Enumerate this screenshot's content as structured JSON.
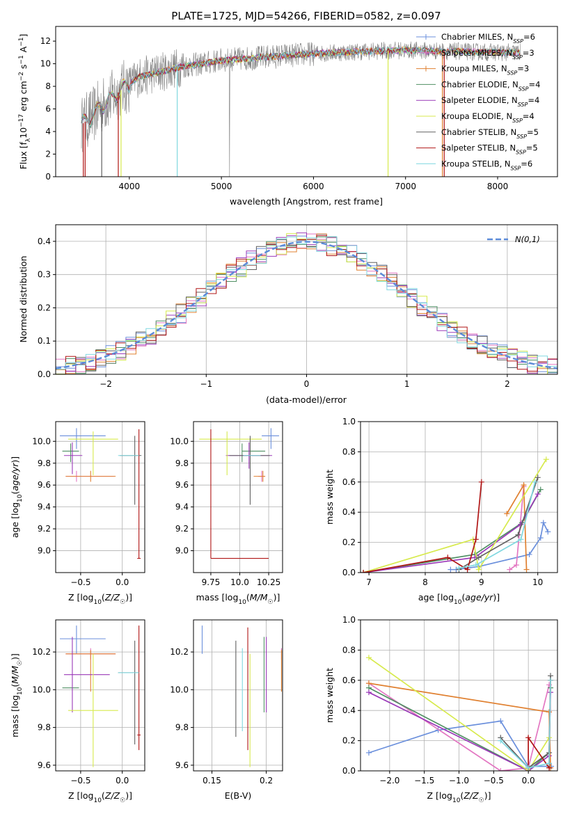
{
  "figure_title": "PLATE=1725, MJD=54266, FIBERID=0582, z=0.097",
  "colors": {
    "Chabrier MILES": "#6a8fdc",
    "Salpeter MILES": "#e377c2",
    "Kroupa MILES": "#e08030",
    "Chabrier ELODIE": "#4f8f63",
    "Salpeter ELODIE": "#9a38b8",
    "Kroupa ELODIE": "#d7ea4d",
    "Chabrier STELIB": "#606060",
    "Salpeter STELIB": "#b01515",
    "Kroupa STELIB": "#80d8e0",
    "spectrum": "#808080",
    "normal": "#5b8ad8"
  },
  "legend_main": [
    {
      "name": "Chabrier MILES",
      "nssp": "6"
    },
    {
      "name": "Salpeter MILES",
      "nssp": "3"
    },
    {
      "name": "Kroupa MILES",
      "nssp": "3"
    },
    {
      "name": "Chabrier ELODIE",
      "nssp": "4"
    },
    {
      "name": "Salpeter ELODIE",
      "nssp": "4"
    },
    {
      "name": "Kroupa ELODIE",
      "nssp": "4"
    },
    {
      "name": "Chabrier STELIB",
      "nssp": "5"
    },
    {
      "name": "Salpeter STELIB",
      "nssp": "5"
    },
    {
      "name": "Kroupa STELIB",
      "nssp": "6"
    }
  ],
  "chart_data": [
    {
      "id": "spectrum",
      "type": "line",
      "xlabel": "wavelength [Angstrom, rest frame]",
      "ylabel": "Flux [f_λ 10^-17 erg cm^-2 s^-1 A^-1]",
      "xlim": [
        3200,
        8650
      ],
      "ylim": [
        0,
        13.3
      ],
      "xticks": [
        4000,
        5000,
        6000,
        7000,
        8000
      ],
      "yticks": [
        0,
        2,
        4,
        6,
        8,
        10,
        12
      ],
      "continuum_knots": [
        [
          3480,
          4.6
        ],
        [
          3600,
          5.4
        ],
        [
          3700,
          6.3
        ],
        [
          3800,
          6.9
        ],
        [
          3900,
          7.6
        ],
        [
          4000,
          8.2
        ],
        [
          4100,
          8.8
        ],
        [
          4200,
          9.0
        ],
        [
          4400,
          9.4
        ],
        [
          4600,
          9.8
        ],
        [
          4800,
          10.0
        ],
        [
          5000,
          10.3
        ],
        [
          5200,
          10.4
        ],
        [
          5500,
          10.6
        ],
        [
          6000,
          10.9
        ],
        [
          6300,
          11.0
        ],
        [
          6600,
          11.1
        ],
        [
          7000,
          11.2
        ],
        [
          7500,
          11.1
        ],
        [
          8000,
          11.0
        ],
        [
          8250,
          11.0
        ]
      ]
    },
    {
      "id": "residuals",
      "type": "histogram",
      "xlabel": "(data-model)/error",
      "ylabel": "Normed distribution",
      "xlim": [
        -2.5,
        2.5
      ],
      "ylim": [
        0,
        0.45
      ],
      "xticks": [
        -2,
        -1,
        0,
        1,
        2
      ],
      "yticks": [
        0.0,
        0.1,
        0.2,
        0.3,
        0.4
      ],
      "bins": 50,
      "legend_label": "N(0,1)"
    },
    {
      "id": "age-vs-Z",
      "type": "scatter",
      "xlabel": "Z [log10(Z/Z☉)]",
      "ylabel": "age  [log10(age/yr)]",
      "xlim": [
        -0.8,
        0.27
      ],
      "ylim": [
        8.8,
        10.18
      ],
      "xticks": [
        -0.5,
        0.0
      ],
      "yticks": [
        9.0,
        9.2,
        9.4,
        9.6,
        9.8,
        10.0
      ],
      "points": [
        {
          "model": "Chabrier MILES",
          "x": -0.55,
          "y": 10.05,
          "xerr": [
            0.2,
            0.35
          ],
          "yerr": [
            0.12,
            0.07
          ]
        },
        {
          "model": "Salpeter MILES",
          "x": -0.55,
          "y": 9.68,
          "xerr": [
            0.13,
            0.45
          ],
          "yerr": [
            0.05,
            0.05
          ]
        },
        {
          "model": "Kroupa MILES",
          "x": -0.38,
          "y": 9.68,
          "xerr": [
            0.3,
            0.3
          ],
          "yerr": [
            0.05,
            0.05
          ]
        },
        {
          "model": "Chabrier ELODIE",
          "x": -0.62,
          "y": 9.91,
          "xerr": [
            0.1,
            0.1
          ],
          "yerr": [
            0.1,
            0.07
          ]
        },
        {
          "model": "Salpeter ELODIE",
          "x": -0.6,
          "y": 9.87,
          "xerr": [
            0.1,
            0.12
          ],
          "yerr": [
            0.17,
            0.12
          ]
        },
        {
          "model": "Kroupa ELODIE",
          "x": -0.35,
          "y": 10.02,
          "xerr": [
            0.3,
            0.3
          ],
          "yerr": [
            0.33,
            0.07
          ]
        },
        {
          "model": "Chabrier STELIB",
          "x": 0.15,
          "y": 9.87,
          "xerr": [
            0.18,
            0.08
          ],
          "yerr": [
            0.45,
            0.18
          ]
        },
        {
          "model": "Salpeter STELIB",
          "x": 0.2,
          "y": 8.93,
          "xerr": [
            0.02,
            0.02
          ],
          "yerr": [
            0.0,
            1.18
          ]
        },
        {
          "model": "Kroupa STELIB",
          "x": 0.15,
          "y": 9.87,
          "xerr": [
            0.2,
            0.05
          ],
          "yerr": [
            0.0,
            0.0
          ]
        }
      ]
    },
    {
      "id": "age-vs-mass",
      "type": "scatter",
      "xlabel": "mass [log10(M/M☉)]",
      "ylabel": "",
      "xlim": [
        9.6,
        10.37
      ],
      "ylim": [
        8.8,
        10.18
      ],
      "xticks": [
        9.75,
        10.0,
        10.25
      ],
      "yticks": [
        9.0,
        9.2,
        9.4,
        9.6,
        9.8,
        10.0
      ],
      "points": [
        {
          "model": "Chabrier MILES",
          "x": 10.27,
          "y": 10.05,
          "xerr": [
            0.08,
            0.07
          ],
          "yerr": [
            0.12,
            0.07
          ]
        },
        {
          "model": "Salpeter MILES",
          "x": 10.19,
          "y": 9.68,
          "xerr": [
            0.03,
            0.03
          ],
          "yerr": [
            0.05,
            0.05
          ]
        },
        {
          "model": "Kroupa MILES",
          "x": 10.2,
          "y": 9.68,
          "xerr": [
            0.08,
            0.02
          ],
          "yerr": [
            0.05,
            0.05
          ]
        },
        {
          "model": "Chabrier ELODIE",
          "x": 10.02,
          "y": 9.91,
          "xerr": [
            0.0,
            0.2
          ],
          "yerr": [
            0.1,
            0.07
          ]
        },
        {
          "model": "Salpeter ELODIE",
          "x": 10.08,
          "y": 9.87,
          "xerr": [
            0.2,
            0.2
          ],
          "yerr": [
            0.12,
            0.12
          ]
        },
        {
          "model": "Kroupa ELODIE",
          "x": 9.89,
          "y": 10.02,
          "xerr": [
            0.24,
            0.3
          ],
          "yerr": [
            0.33,
            0.07
          ]
        },
        {
          "model": "Chabrier STELIB",
          "x": 10.09,
          "y": 9.87,
          "xerr": [
            0.18,
            0.17
          ],
          "yerr": [
            0.45,
            0.18
          ]
        },
        {
          "model": "Salpeter STELIB",
          "x": 9.75,
          "y": 8.93,
          "xerr": [
            0.0,
            0.5
          ],
          "yerr": [
            0.0,
            1.18
          ]
        },
        {
          "model": "Kroupa STELIB",
          "x": 10.08,
          "y": 9.87,
          "xerr": [
            0.05,
            0.1
          ],
          "yerr": [
            0.0,
            0.0
          ]
        }
      ]
    },
    {
      "id": "massweight-vs-age",
      "type": "line",
      "xlabel": "age  [log10(age/yr)]",
      "ylabel": "mass weight",
      "xlim": [
        6.85,
        10.35
      ],
      "ylim": [
        0,
        1.0
      ],
      "xticks": [
        7,
        8,
        9,
        10
      ],
      "yticks": [
        0.0,
        0.2,
        0.4,
        0.6,
        0.8,
        1.0
      ],
      "series": [
        {
          "model": "Chabrier MILES",
          "x": [
            8.45,
            8.55,
            8.95,
            9.85,
            10.05,
            10.1,
            10.18
          ],
          "y": [
            0.02,
            0.02,
            0.04,
            0.12,
            0.23,
            0.33,
            0.27
          ]
        },
        {
          "model": "Salpeter MILES",
          "x": [
            9.5,
            9.62,
            9.75
          ],
          "y": [
            0.02,
            0.05,
            0.57
          ]
        },
        {
          "model": "Kroupa MILES",
          "x": [
            9.45,
            9.75,
            9.8
          ],
          "y": [
            0.39,
            0.58,
            0.02
          ]
        },
        {
          "model": "Chabrier ELODIE",
          "x": [
            6.9,
            8.88,
            9.72,
            10.05
          ],
          "y": [
            0.0,
            0.12,
            0.33,
            0.55
          ]
        },
        {
          "model": "Salpeter ELODIE",
          "x": [
            6.9,
            8.88,
            9.7,
            10.0
          ],
          "y": [
            0.0,
            0.1,
            0.32,
            0.52
          ]
        },
        {
          "model": "Kroupa ELODIE",
          "x": [
            6.9,
            8.85,
            8.95,
            10.15
          ],
          "y": [
            0.0,
            0.22,
            0.02,
            0.75
          ]
        },
        {
          "model": "Chabrier STELIB",
          "x": [
            8.6,
            8.95,
            9.65,
            10.0
          ],
          "y": [
            0.02,
            0.1,
            0.25,
            0.63
          ]
        },
        {
          "model": "Salpeter STELIB",
          "x": [
            6.9,
            8.4,
            8.75,
            8.9,
            9.0
          ],
          "y": [
            0.0,
            0.1,
            0.02,
            0.22,
            0.6
          ]
        },
        {
          "model": "Kroupa STELIB",
          "x": [
            8.6,
            8.9,
            9.7,
            9.95
          ],
          "y": [
            0.03,
            0.05,
            0.22,
            0.6
          ]
        }
      ]
    },
    {
      "id": "mass-vs-Z",
      "type": "scatter",
      "xlabel": "Z [log10(Z/Z☉)]",
      "ylabel": "mass [log10(M/M☉)]",
      "xlim": [
        -0.8,
        0.27
      ],
      "ylim": [
        9.57,
        10.37
      ],
      "xticks": [
        -0.5,
        0.0
      ],
      "yticks": [
        9.6,
        9.8,
        10.0,
        10.2
      ],
      "points": [
        {
          "model": "Chabrier MILES",
          "x": -0.55,
          "y": 10.27,
          "xerr": [
            0.2,
            0.35
          ],
          "yerr": [
            0.08,
            0.07
          ]
        },
        {
          "model": "Salpeter MILES",
          "x": -0.38,
          "y": 10.19,
          "xerr": [
            0.3,
            0.3
          ],
          "yerr": [
            0.03,
            0.03
          ]
        },
        {
          "model": "Kroupa MILES",
          "x": -0.38,
          "y": 10.19,
          "xerr": [
            0.3,
            0.3
          ],
          "yerr": [
            0.2,
            0.02
          ]
        },
        {
          "model": "Chabrier ELODIE",
          "x": -0.62,
          "y": 10.01,
          "xerr": [
            0.1,
            0.1
          ],
          "yerr": [
            0.0,
            0.0
          ]
        },
        {
          "model": "Salpeter ELODIE",
          "x": -0.6,
          "y": 10.08,
          "xerr": [
            0.1,
            0.45
          ],
          "yerr": [
            0.2,
            0.2
          ]
        },
        {
          "model": "Kroupa ELODIE",
          "x": -0.35,
          "y": 9.89,
          "xerr": [
            0.3,
            0.3
          ],
          "yerr": [
            0.3,
            0.3
          ]
        },
        {
          "model": "Chabrier STELIB",
          "x": 0.15,
          "y": 10.09,
          "xerr": [
            0.2,
            0.05
          ],
          "yerr": [
            0.38,
            0.17
          ]
        },
        {
          "model": "Salpeter STELIB",
          "x": 0.2,
          "y": 9.76,
          "xerr": [
            0.02,
            0.02
          ],
          "yerr": [
            0.08,
            0.58
          ]
        },
        {
          "model": "Kroupa STELIB",
          "x": 0.15,
          "y": 10.09,
          "xerr": [
            0.2,
            0.05
          ],
          "yerr": [
            0.0,
            0.0
          ]
        }
      ]
    },
    {
      "id": "mass-vs-EBV",
      "type": "scatter",
      "xlabel": "E(B-V)",
      "ylabel": "",
      "xlim": [
        0.133,
        0.215
      ],
      "ylim": [
        9.57,
        10.37
      ],
      "xticks": [
        0.15,
        0.2
      ],
      "yticks": [
        9.6,
        9.8,
        10.0,
        10.2
      ],
      "points": [
        {
          "model": "Chabrier MILES",
          "x": 0.141,
          "y": 10.27,
          "yerr": [
            0.08,
            0.07
          ]
        },
        {
          "model": "Salpeter MILES",
          "x": 0.214,
          "y": 10.19,
          "yerr": [
            0.03,
            0.03
          ]
        },
        {
          "model": "Kroupa MILES",
          "x": 0.214,
          "y": 10.19,
          "yerr": [
            0.2,
            0.02
          ]
        },
        {
          "model": "Chabrier ELODIE",
          "x": 0.198,
          "y": 10.08,
          "yerr": [
            0.2,
            0.2
          ]
        },
        {
          "model": "Salpeter ELODIE",
          "x": 0.2,
          "y": 10.08,
          "yerr": [
            0.2,
            0.2
          ]
        },
        {
          "model": "Kroupa ELODIE",
          "x": 0.185,
          "y": 9.89,
          "yerr": [
            0.3,
            0.3
          ]
        },
        {
          "model": "Chabrier STELIB",
          "x": 0.172,
          "y": 10.09,
          "yerr": [
            0.34,
            0.17
          ]
        },
        {
          "model": "Salpeter STELIB",
          "x": 0.183,
          "y": 9.76,
          "yerr": [
            0.08,
            0.57
          ]
        },
        {
          "model": "Kroupa STELIB",
          "x": 0.178,
          "y": 10.09,
          "yerr": [
            0.31,
            0.13
          ]
        }
      ]
    },
    {
      "id": "massweight-vs-Z",
      "type": "line",
      "xlabel": "Z [log10(Z/Z☉)]",
      "ylabel": "mass weight",
      "xlim": [
        -2.42,
        0.42
      ],
      "ylim": [
        0,
        1.0
      ],
      "xticks": [
        -2.0,
        -1.5,
        -1.0,
        -0.5,
        0.0
      ],
      "yticks": [
        0.0,
        0.2,
        0.4,
        0.6,
        0.8,
        1.0
      ],
      "series": [
        {
          "model": "Chabrier MILES",
          "x": [
            -2.3,
            -1.3,
            -0.4,
            0.0,
            0.33
          ],
          "y": [
            0.12,
            0.27,
            0.33,
            0.03,
            0.03
          ]
        },
        {
          "model": "Salpeter MILES",
          "x": [
            -2.3,
            -0.4,
            0.0,
            0.3
          ],
          "y": [
            0.58,
            0.0,
            0.02,
            0.57
          ]
        },
        {
          "model": "Kroupa MILES",
          "x": [
            -2.3,
            0.3,
            0.32
          ],
          "y": [
            0.58,
            0.39,
            0.02
          ]
        },
        {
          "model": "Chabrier ELODIE",
          "x": [
            -2.3,
            0.0,
            0.3,
            0.32
          ],
          "y": [
            0.55,
            0.0,
            0.12,
            0.55
          ]
        },
        {
          "model": "Salpeter ELODIE",
          "x": [
            -2.3,
            0.0,
            0.3,
            0.32
          ],
          "y": [
            0.52,
            0.0,
            0.1,
            0.52
          ]
        },
        {
          "model": "Kroupa ELODIE",
          "x": [
            -2.3,
            0.0,
            0.3
          ],
          "y": [
            0.75,
            0.0,
            0.22
          ]
        },
        {
          "model": "Chabrier STELIB",
          "x": [
            -0.4,
            0.0,
            0.3,
            0.32
          ],
          "y": [
            0.22,
            0.02,
            0.12,
            0.63
          ]
        },
        {
          "model": "Salpeter STELIB",
          "x": [
            0.0,
            0.0,
            0.3,
            0.32
          ],
          "y": [
            0.0,
            0.22,
            0.02,
            0.6
          ]
        },
        {
          "model": "Kroupa STELIB",
          "x": [
            -0.4,
            0.0,
            0.3,
            0.32
          ],
          "y": [
            0.2,
            0.02,
            0.05,
            0.6
          ]
        }
      ]
    }
  ]
}
